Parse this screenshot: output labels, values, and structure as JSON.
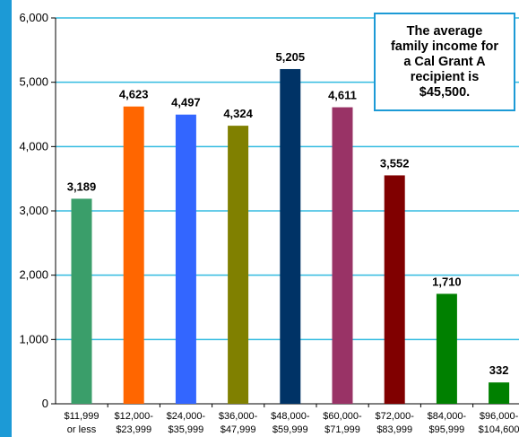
{
  "chart_data": {
    "type": "bar",
    "categories": [
      [
        "$11,999",
        "or less"
      ],
      [
        "$12,000-",
        "$23,999"
      ],
      [
        "$24,000-",
        "$35,999"
      ],
      [
        "$36,000-",
        "$47,999"
      ],
      [
        "$48,000-",
        "$59,999"
      ],
      [
        "$60,000-",
        "$71,999"
      ],
      [
        "$72,000-",
        "$83,999"
      ],
      [
        "$84,000-",
        "$95,999"
      ],
      [
        "$96,000-",
        "$104,600"
      ]
    ],
    "values": [
      3189,
      4623,
      4497,
      4324,
      5205,
      4611,
      3552,
      1710,
      332
    ],
    "value_labels": [
      "3,189",
      "4,623",
      "4,497",
      "4,324",
      "5,205",
      "4,611",
      "3,552",
      "1,710",
      "332"
    ],
    "colors": [
      "#3a9e6a",
      "#ff6600",
      "#3366ff",
      "#808000",
      "#003366",
      "#993366",
      "#800000",
      "#008000",
      "#008000"
    ],
    "ylim": [
      0,
      6000
    ],
    "yticks": [
      0,
      1000,
      2000,
      3000,
      4000,
      5000,
      6000
    ],
    "ytick_labels": [
      "0",
      "1,000",
      "2,000",
      "3,000",
      "4,000",
      "5,000",
      "6,000"
    ],
    "grid": true,
    "gridline_color": "#33bbe0",
    "title": "",
    "xlabel": "",
    "ylabel": "",
    "annotations": [
      {
        "lines": [
          "The average",
          "family income for",
          "a Cal Grant A",
          "recipient is",
          "$45,500."
        ],
        "placement": "top-right"
      }
    ]
  },
  "colors": {
    "frame_strip": "#1c9ad6",
    "callout_border": "#1c9ad6"
  }
}
